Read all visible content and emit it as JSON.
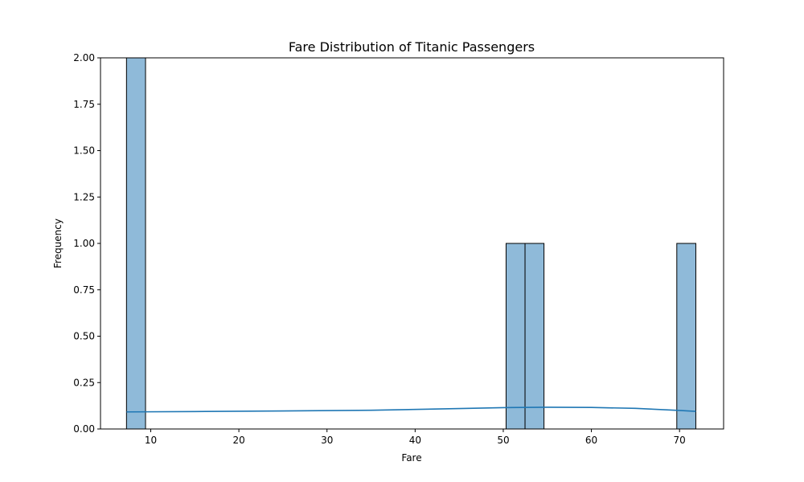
{
  "chart_data": {
    "type": "bar",
    "title": "Fare Distribution of Titanic Passengers",
    "xlabel": "Fare",
    "ylabel": "Frequency",
    "xlim": [
      4.3,
      75.0
    ],
    "ylim": [
      0,
      2.0
    ],
    "x_ticks": [
      10,
      20,
      30,
      40,
      50,
      60,
      70
    ],
    "y_ticks": [
      "0.00",
      "0.25",
      "0.50",
      "0.75",
      "1.00",
      "1.25",
      "1.50",
      "1.75",
      "2.00"
    ],
    "grid": false,
    "bars": [
      {
        "x0": 7.25,
        "x1": 9.41,
        "value": 2
      },
      {
        "x0": 50.32,
        "x1": 52.47,
        "value": 1
      },
      {
        "x0": 52.47,
        "x1": 54.62,
        "value": 1
      },
      {
        "x0": 69.69,
        "x1": 71.85,
        "value": 1
      }
    ],
    "kde": {
      "x": [
        7.25,
        15,
        25,
        35,
        45,
        50,
        55,
        60,
        65,
        70,
        71.85
      ],
      "y": [
        0.092,
        0.094,
        0.097,
        0.101,
        0.11,
        0.115,
        0.117,
        0.116,
        0.111,
        0.1,
        0.095
      ]
    },
    "colors": {
      "bar_fill": "#8fbad9",
      "bar_edge": "#000000",
      "kde_line": "#1f77b4"
    }
  }
}
